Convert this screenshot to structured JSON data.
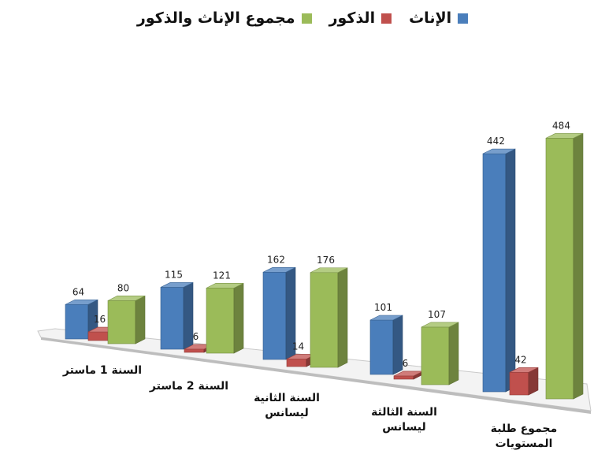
{
  "chart_data": {
    "type": "bar",
    "title": "",
    "categories": [
      [
        "السنة 1 ماستر"
      ],
      [
        "السنة 2 ماستر"
      ],
      [
        "السنة الثانية",
        "ليسانس"
      ],
      [
        "السنة الثالثة",
        "ليسانس"
      ],
      [
        "مجموع طلبة",
        "المستويات"
      ]
    ],
    "series": [
      {
        "name": "الإناث",
        "color": "#4a7ebb",
        "values": [
          64,
          115,
          162,
          101,
          442
        ]
      },
      {
        "name": "الذكور",
        "color": "#c0504d",
        "values": [
          16,
          6,
          14,
          6,
          42
        ]
      },
      {
        "name": "مجموع الإناث والذكور",
        "color": "#9bbb59",
        "values": [
          80,
          121,
          176,
          107,
          484
        ]
      }
    ],
    "ylim": [
      0,
      484
    ],
    "grid": false,
    "legend_position": "top"
  }
}
